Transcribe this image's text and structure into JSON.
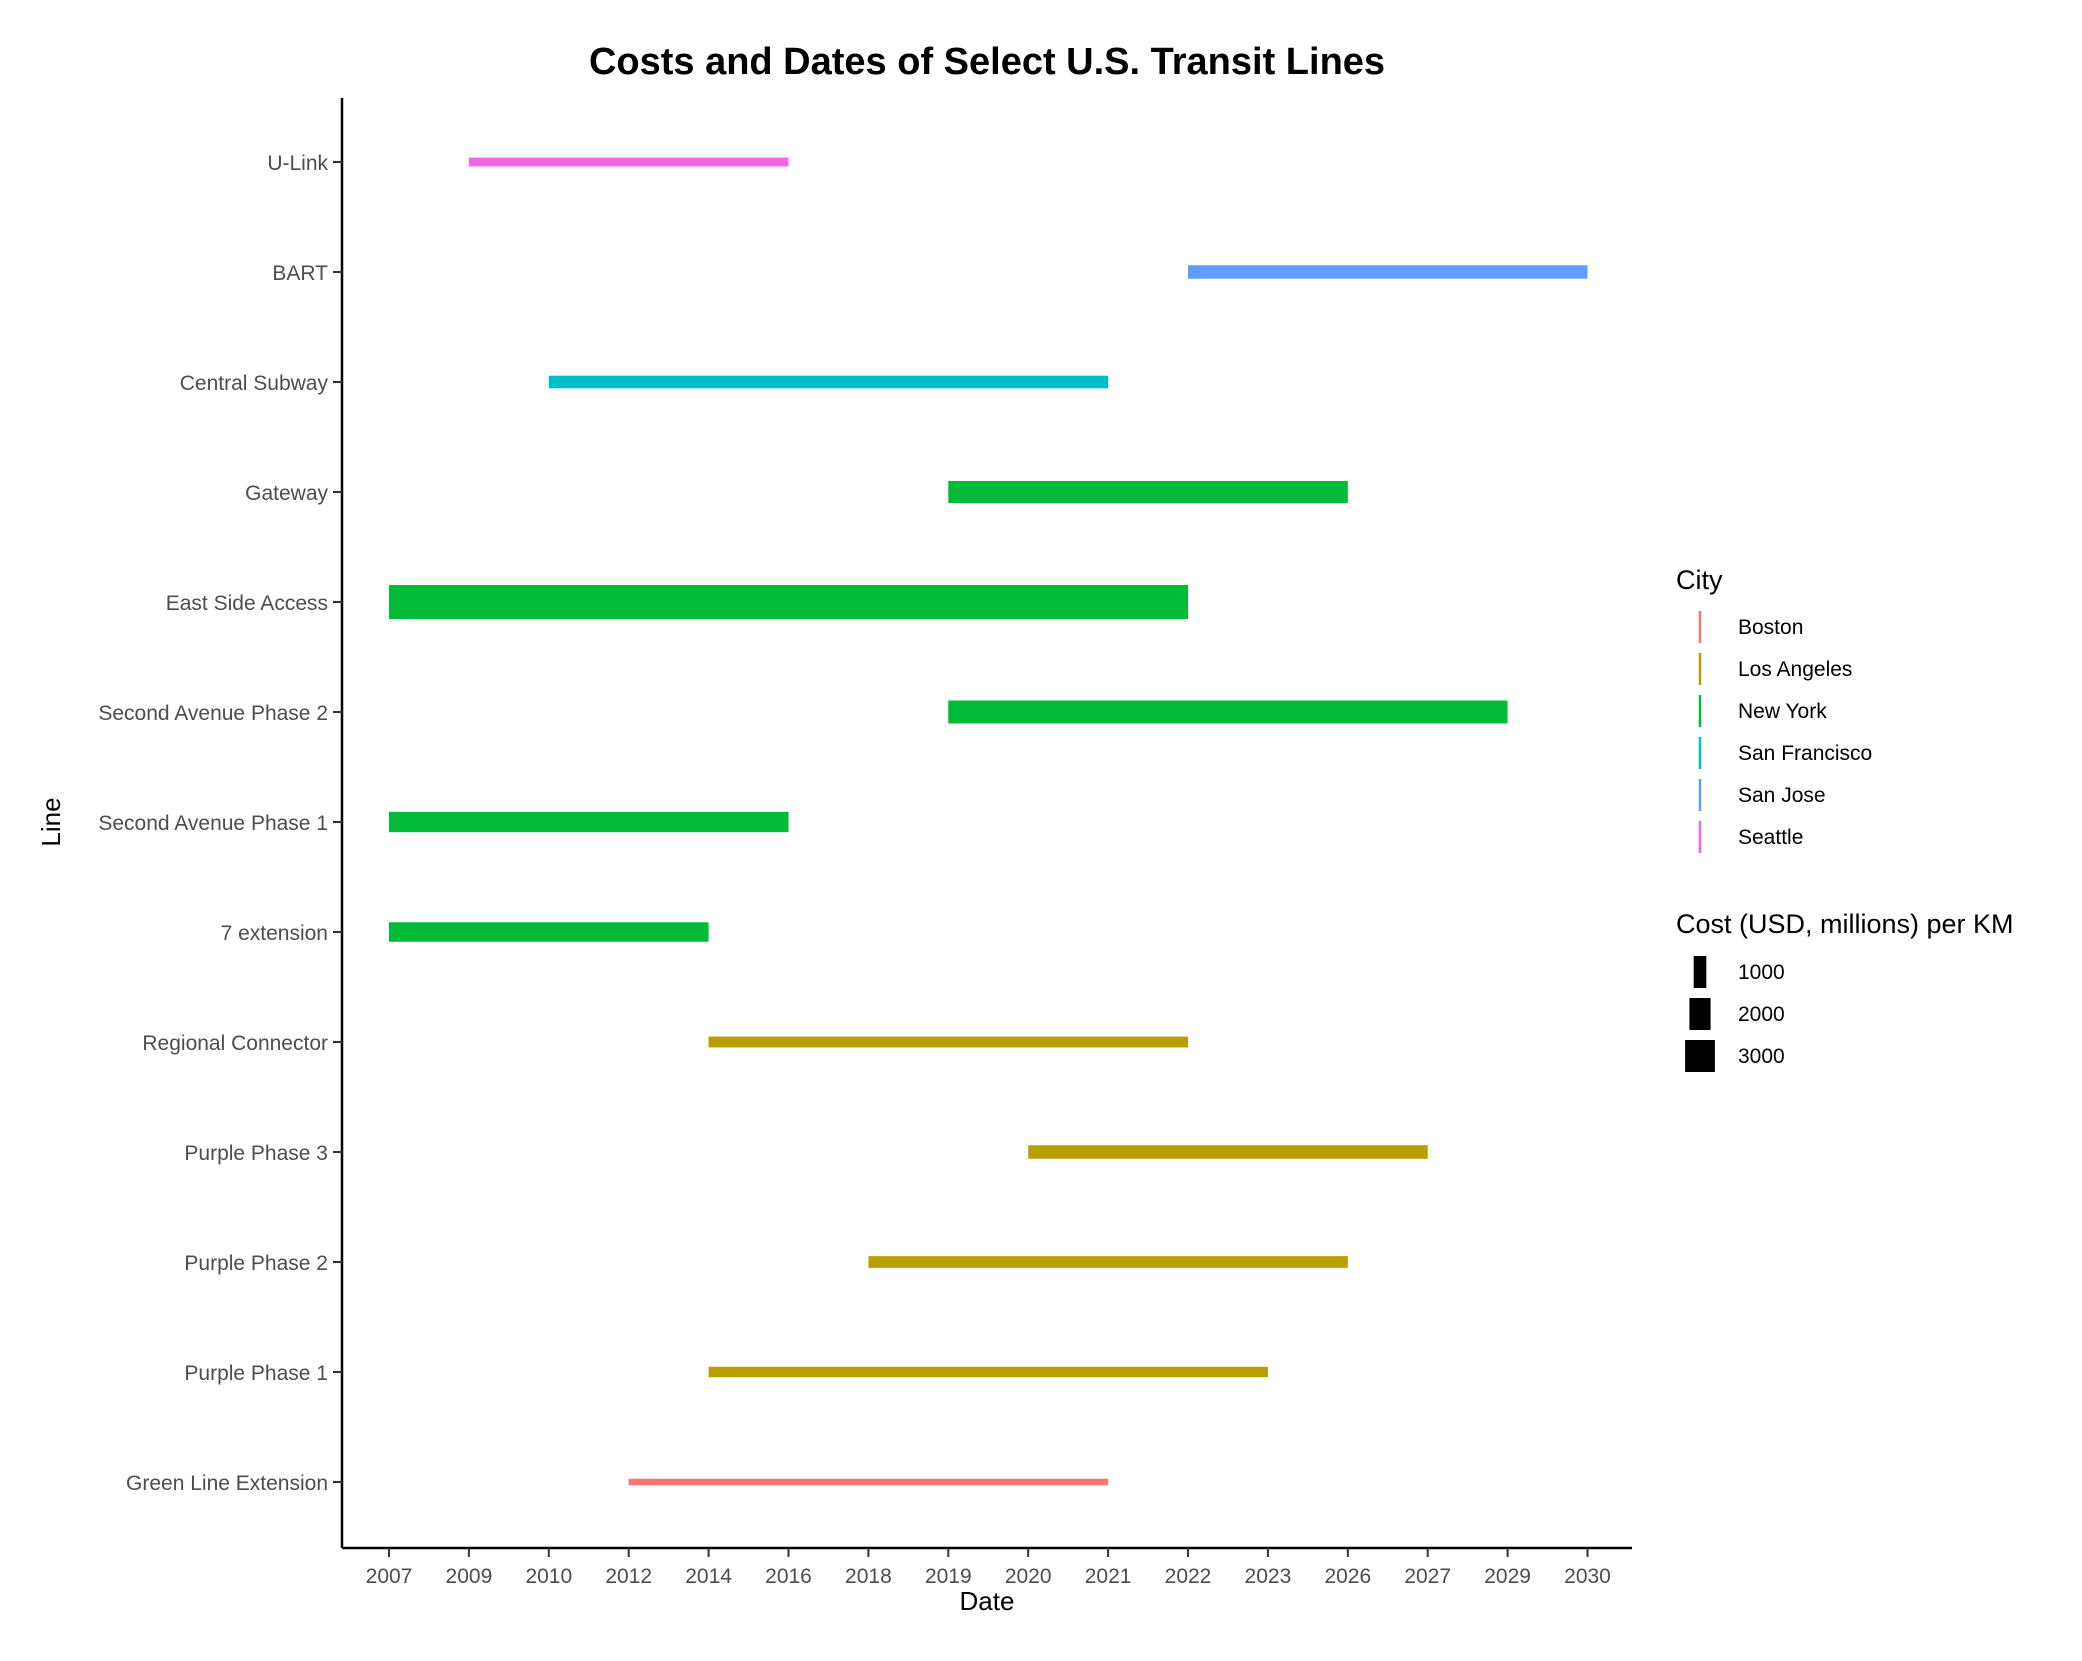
{
  "chart_data": {
    "type": "gantt",
    "title": "Costs and Dates of Select U.S. Transit Lines",
    "xlabel": "Date",
    "ylabel": "Line",
    "x_ticks": [
      "2007",
      "2009",
      "2010",
      "2012",
      "2014",
      "2016",
      "2018",
      "2019",
      "2020",
      "2021",
      "2022",
      "2023",
      "2026",
      "2027",
      "2029",
      "2030"
    ],
    "categories": [
      "U-Link",
      "BART",
      "Central Subway",
      "Gateway",
      "East Side Access",
      "Second Avenue Phase 2",
      "Second Avenue Phase 1",
      "7 extension",
      "Regional Connector",
      "Purple Phase 3",
      "Purple Phase 2",
      "Purple Phase 1",
      "Green Line Extension"
    ],
    "bars": [
      {
        "line": "U-Link",
        "city": "Seattle",
        "start": "2009",
        "end": "2016",
        "cost_per_km": 550
      },
      {
        "line": "BART",
        "city": "San Jose",
        "start": "2022",
        "end": "2030",
        "cost_per_km": 1100
      },
      {
        "line": "Central Subway",
        "city": "San Francisco",
        "start": "2010",
        "end": "2021",
        "cost_per_km": 1000
      },
      {
        "line": "Gateway",
        "city": "New York",
        "start": "2019",
        "end": "2026",
        "cost_per_km": 2100
      },
      {
        "line": "East Side Access",
        "city": "New York",
        "start": "2007",
        "end": "2022",
        "cost_per_km": 3500
      },
      {
        "line": "Second Avenue Phase 2",
        "city": "New York",
        "start": "2019",
        "end": "2029",
        "cost_per_km": 2200
      },
      {
        "line": "Second Avenue Phase 1",
        "city": "New York",
        "start": "2007",
        "end": "2016",
        "cost_per_km": 1900
      },
      {
        "line": "7 extension",
        "city": "New York",
        "start": "2007",
        "end": "2014",
        "cost_per_km": 1800
      },
      {
        "line": "Regional Connector",
        "city": "Los Angeles",
        "start": "2014",
        "end": "2022",
        "cost_per_km": 800
      },
      {
        "line": "Purple Phase 3",
        "city": "Los Angeles",
        "start": "2020",
        "end": "2027",
        "cost_per_km": 1100
      },
      {
        "line": "Purple Phase 2",
        "city": "Los Angeles",
        "start": "2018",
        "end": "2026",
        "cost_per_km": 900
      },
      {
        "line": "Purple Phase 1",
        "city": "Los Angeles",
        "start": "2014",
        "end": "2023",
        "cost_per_km": 750
      },
      {
        "line": "Green Line Extension",
        "city": "Boston",
        "start": "2012",
        "end": "2021",
        "cost_per_km": 300
      }
    ],
    "legend_city": {
      "title": "City",
      "items": [
        {
          "label": "Boston",
          "color": "#F8766D"
        },
        {
          "label": "Los Angeles",
          "color": "#B79F00"
        },
        {
          "label": "New York",
          "color": "#00BA38"
        },
        {
          "label": "San Francisco",
          "color": "#00BFC4"
        },
        {
          "label": "San Jose",
          "color": "#619CFF"
        },
        {
          "label": "Seattle",
          "color": "#F564E3"
        }
      ]
    },
    "legend_size": {
      "title": "Cost (USD, millions) per KM",
      "items": [
        {
          "label": "1000",
          "value": 1000
        },
        {
          "label": "2000",
          "value": 2000
        },
        {
          "label": "3000",
          "value": 3000
        }
      ]
    },
    "legend_placement": "right",
    "grid": false
  }
}
